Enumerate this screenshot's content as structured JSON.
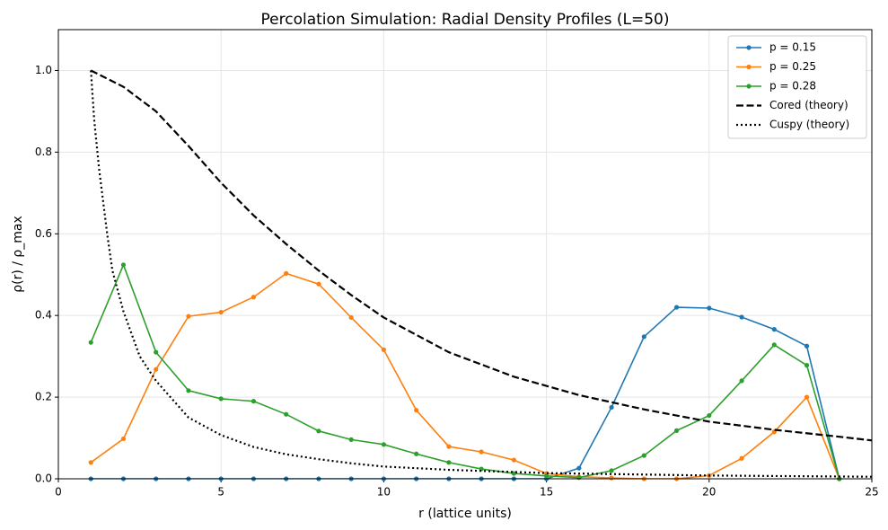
{
  "chart_data": {
    "type": "line",
    "title": "Percolation Simulation: Radial Density Profiles (L=50)",
    "xlabel": "r (lattice units)",
    "ylabel": "ρ(r) / ρ_max",
    "xlim": [
      0,
      25
    ],
    "ylim": [
      0,
      1.1
    ],
    "xticks": [
      0,
      5,
      10,
      15,
      20,
      25
    ],
    "yticks": [
      {
        "value": 0,
        "label": "0.0"
      },
      {
        "value": 0.2,
        "label": "0.2"
      },
      {
        "value": 0.4,
        "label": "0.4"
      },
      {
        "value": 0.6,
        "label": "0.6"
      },
      {
        "value": 0.8,
        "label": "0.8"
      },
      {
        "value": 1,
        "label": "1.0"
      }
    ],
    "grid": true,
    "legend": "upper right",
    "series": [
      {
        "name": "p = 0.15",
        "color": "#1f77b4",
        "marker": true,
        "dash": "solid",
        "x": [
          1,
          2,
          3,
          4,
          5,
          6,
          7,
          8,
          9,
          10,
          11,
          12,
          13,
          14,
          15,
          16,
          17,
          18,
          19,
          20,
          21,
          22,
          23,
          24
        ],
        "values": [
          0,
          0,
          0,
          0,
          0,
          0,
          0,
          0,
          0,
          0,
          0,
          0,
          0,
          0,
          0,
          0.026,
          0.175,
          0.348,
          0.42,
          0.418,
          0.396,
          0.366,
          0.325,
          0
        ]
      },
      {
        "name": "p = 0.25",
        "color": "#ff7f0e",
        "marker": true,
        "dash": "solid",
        "x": [
          1,
          2,
          3,
          4,
          5,
          6,
          7,
          8,
          9,
          10,
          11,
          12,
          13,
          14,
          15,
          16,
          17,
          18,
          19,
          20,
          21,
          22,
          23,
          24
        ],
        "values": [
          0.04,
          0.098,
          0.268,
          0.398,
          0.408,
          0.445,
          0.503,
          0.477,
          0.395,
          0.316,
          0.168,
          0.079,
          0.066,
          0.046,
          0.013,
          0.005,
          0.002,
          0,
          0,
          0.008,
          0.05,
          0.115,
          0.2,
          0
        ]
      },
      {
        "name": "p = 0.28",
        "color": "#2ca02c",
        "marker": true,
        "dash": "solid",
        "x": [
          1,
          2,
          3,
          4,
          5,
          6,
          7,
          8,
          9,
          10,
          11,
          12,
          13,
          14,
          15,
          16,
          17,
          18,
          19,
          20,
          21,
          22,
          23,
          24
        ],
        "values": [
          0.334,
          0.524,
          0.31,
          0.216,
          0.196,
          0.19,
          0.158,
          0.117,
          0.096,
          0.084,
          0.061,
          0.04,
          0.024,
          0.013,
          0.007,
          0.003,
          0.02,
          0.057,
          0.118,
          0.155,
          0.24,
          0.328,
          0.278,
          0
        ]
      },
      {
        "name": "Cored (theory)",
        "color": "#000000",
        "marker": false,
        "dash": "dashed",
        "x": [
          1,
          2,
          3,
          4,
          5,
          6,
          7,
          8,
          9,
          10,
          12,
          14,
          16,
          18,
          20,
          22,
          24,
          25
        ],
        "values": [
          1,
          0.96,
          0.9,
          0.815,
          0.725,
          0.645,
          0.575,
          0.51,
          0.45,
          0.395,
          0.31,
          0.25,
          0.205,
          0.17,
          0.14,
          0.12,
          0.103,
          0.094
        ]
      },
      {
        "name": "Cuspy (theory)",
        "color": "#000000",
        "marker": false,
        "dash": "dotted",
        "x": [
          1,
          1.1,
          1.25,
          1.5,
          1.66,
          2,
          2.5,
          3,
          4,
          5,
          6,
          7,
          8,
          9,
          10,
          12,
          15,
          20,
          25
        ],
        "values": [
          1,
          0.88,
          0.76,
          0.6,
          0.51,
          0.41,
          0.3,
          0.24,
          0.15,
          0.107,
          0.078,
          0.06,
          0.048,
          0.038,
          0.03,
          0.022,
          0.014,
          0.008,
          0.005
        ]
      }
    ]
  }
}
